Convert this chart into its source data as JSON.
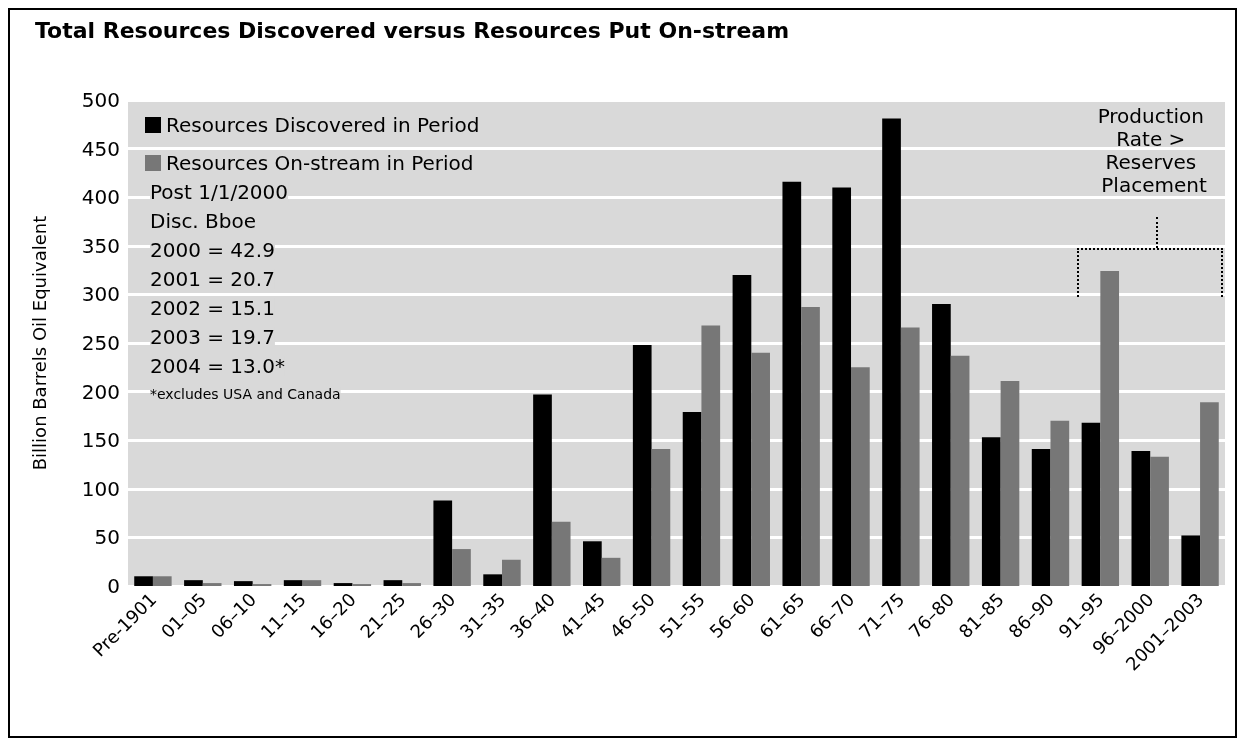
{
  "chart_data": {
    "type": "bar",
    "title": "Total Resources Discovered versus Resources Put On-stream",
    "ylabel": "Billion Barrels Oil Equivalent",
    "categories": [
      "Pre-1901",
      "01–05",
      "06–10",
      "11–15",
      "16–20",
      "21–25",
      "26–30",
      "31–35",
      "36–40",
      "41–45",
      "46–50",
      "51–55",
      "56–60",
      "61–65",
      "66–70",
      "71–75",
      "76–80",
      "81–85",
      "86–90",
      "91–95",
      "96–2000",
      "2001–2003"
    ],
    "series": [
      {
        "name": "Resources Discovered in Period",
        "color": "#000000",
        "values": [
          10,
          6,
          5,
          6,
          3,
          6,
          88,
          12,
          197,
          46,
          248,
          179,
          320,
          416,
          410,
          481,
          290,
          153,
          141,
          168,
          139,
          52
        ]
      },
      {
        "name": "Resources On-stream in Period",
        "color": "#777777",
        "values": [
          10,
          3,
          2,
          6,
          2,
          3,
          38,
          27,
          66,
          29,
          141,
          268,
          240,
          287,
          225,
          266,
          237,
          211,
          170,
          324,
          133,
          189
        ]
      }
    ],
    "ylim": [
      0,
      500
    ],
    "yticks": [
      0,
      50,
      100,
      150,
      200,
      250,
      300,
      350,
      400,
      450,
      500
    ],
    "grid": "y",
    "legend": "top left",
    "annotations": [
      "Post 1/1/2000",
      "Disc. Bboe",
      "2000 = 42.9",
      "2001 = 20.7",
      "2002 = 15.1",
      "2003 = 19.7",
      "2004 = 13.0*",
      "*excludes USA and Canada",
      "Production Rate > Reserves Placement"
    ]
  }
}
